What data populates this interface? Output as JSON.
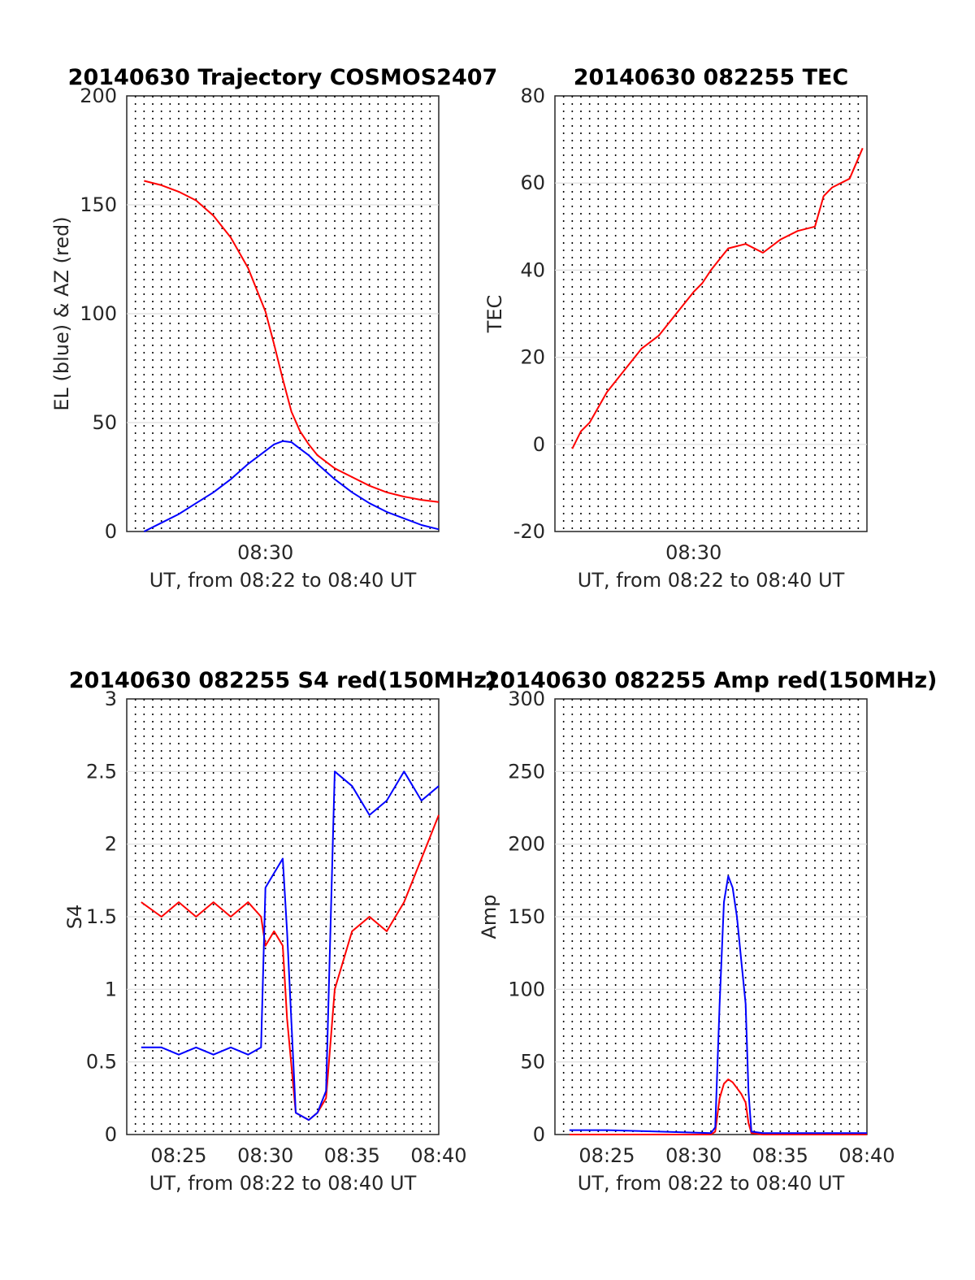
{
  "charts": [
    {
      "id": "trajectory",
      "chart_data": {
        "type": "line",
        "title": "20140630 Trajectory COSMOS2407",
        "xlabel": "UT, from 08:22 to 08:40 UT",
        "ylabel": "EL (blue) & AZ (red)",
        "xlim": [
          "08:22",
          "08:40"
        ],
        "ylim": [
          0,
          200
        ],
        "x_ticks": [
          "08:30"
        ],
        "y_ticks": [
          "0",
          "50",
          "100",
          "150",
          "200"
        ],
        "grid": "horizontal solid, vertical dotted every 30 s",
        "x_sample_times": [
          "08:23:00",
          "08:24:00",
          "08:25:00",
          "08:26:00",
          "08:27:00",
          "08:28:00",
          "08:29:00",
          "08:30:00",
          "08:30:30",
          "08:31:00",
          "08:31:30",
          "08:32:00",
          "08:32:30",
          "08:33:00",
          "08:34:00",
          "08:35:00",
          "08:36:00",
          "08:37:00",
          "08:38:00",
          "08:39:00",
          "08:40:00"
        ],
        "series": [
          {
            "color": "#ff0000",
            "values": [
              161,
              159,
              156,
              152,
              145,
              135,
              121,
              101,
              86,
              70,
              55,
              46,
              40,
              35,
              29,
              25,
              21,
              18,
              16,
              14.5,
              13.5
            ]
          },
          {
            "color": "#0000ff",
            "values": [
              0,
              4,
              8,
              13,
              18,
              24,
              31,
              37,
              40,
              41.5,
              41,
              38,
              35,
              31,
              24,
              18,
              13,
              9,
              6,
              3,
              1
            ]
          }
        ]
      }
    },
    {
      "id": "tec",
      "chart_data": {
        "type": "line",
        "title": "20140630 082255 TEC",
        "xlabel": "UT, from 08:22 to 08:40 UT",
        "ylabel": "TEC",
        "xlim": [
          "08:22",
          "08:40"
        ],
        "ylim": [
          -20,
          80
        ],
        "x_ticks": [
          "08:30"
        ],
        "y_ticks": [
          "-20",
          "0",
          "20",
          "40",
          "60",
          "80"
        ],
        "grid": "horizontal solid, vertical dotted every 30 s",
        "x_sample_times": [
          "08:23:00",
          "08:23:30",
          "08:24:00",
          "08:25:00",
          "08:26:00",
          "08:27:00",
          "08:28:00",
          "08:29:00",
          "08:30:00",
          "08:30:30",
          "08:31:00",
          "08:32:00",
          "08:33:00",
          "08:34:00",
          "08:35:00",
          "08:36:00",
          "08:37:00",
          "08:37:30",
          "08:38:00",
          "08:39:00",
          "08:39:45"
        ],
        "series": [
          {
            "color": "#ff0000",
            "values": [
              -1,
              3,
              5,
              12,
              17,
              22,
              25,
              30,
              35,
              37,
              40,
              45,
              46,
              44,
              47,
              49,
              50,
              57,
              59,
              61,
              68
            ]
          }
        ]
      }
    },
    {
      "id": "s4",
      "chart_data": {
        "type": "line",
        "title": "20140630 082255 S4 red(150MHz)",
        "xlabel": "UT, from 08:22 to 08:40 UT",
        "ylabel": "S4",
        "xlim": [
          "08:22",
          "08:40"
        ],
        "ylim": [
          0,
          3
        ],
        "x_ticks": [
          "08:25",
          "08:30",
          "08:35",
          "08:40"
        ],
        "y_ticks": [
          "0",
          "0.5",
          "1",
          "1.5",
          "2",
          "2.5",
          "3"
        ],
        "grid": "horizontal solid, vertical dotted every 30 s",
        "x_sample_times": [
          "08:22:50",
          "08:24:00",
          "08:25:00",
          "08:26:00",
          "08:27:00",
          "08:28:00",
          "08:29:00",
          "08:29:45",
          "08:30:00",
          "08:30:30",
          "08:31:00",
          "08:31:15",
          "08:31:45",
          "08:32:30",
          "08:33:00",
          "08:33:30",
          "08:34:00",
          "08:35:00",
          "08:36:00",
          "08:37:00",
          "08:38:00",
          "08:39:00",
          "08:40:00"
        ],
        "series": [
          {
            "color": "#ff0000",
            "values": [
              1.6,
              1.5,
              1.6,
              1.5,
              1.6,
              1.5,
              1.6,
              1.5,
              1.3,
              1.4,
              1.3,
              0.8,
              0.15,
              0.1,
              0.15,
              0.25,
              1.0,
              1.4,
              1.5,
              1.4,
              1.6,
              1.9,
              2.2
            ]
          },
          {
            "color": "#0000ff",
            "values": [
              0.6,
              0.6,
              0.55,
              0.6,
              0.55,
              0.6,
              0.55,
              0.6,
              1.7,
              1.8,
              1.9,
              1.4,
              0.15,
              0.1,
              0.15,
              0.3,
              2.5,
              2.4,
              2.2,
              2.3,
              2.5,
              2.3,
              2.4
            ]
          }
        ]
      }
    },
    {
      "id": "amp",
      "chart_data": {
        "type": "line",
        "title": "20140630 082255 Amp red(150MHz)",
        "xlabel": "UT, from 08:22 to 08:40 UT",
        "ylabel": "Amp",
        "xlim": [
          "08:22",
          "08:40"
        ],
        "ylim": [
          0,
          300
        ],
        "x_ticks": [
          "08:25",
          "08:30",
          "08:35",
          "08:40"
        ],
        "y_ticks": [
          "0",
          "50",
          "100",
          "150",
          "200",
          "250",
          "300"
        ],
        "grid": "horizontal solid, vertical dotted every 30 s",
        "x_sample_times": [
          "08:22:50",
          "08:25:00",
          "08:28:00",
          "08:31:00",
          "08:31:15",
          "08:31:30",
          "08:31:45",
          "08:32:00",
          "08:32:15",
          "08:32:30",
          "08:32:45",
          "08:33:00",
          "08:33:10",
          "08:33:20",
          "08:34:00",
          "08:36:00",
          "08:38:00",
          "08:40:00"
        ],
        "series": [
          {
            "color": "#ff0000",
            "values": [
              0,
              0,
              0,
              0,
              2,
              25,
              35,
              38,
              36,
              32,
              28,
              22,
              8,
              1,
              0,
              0,
              0,
              0
            ]
          },
          {
            "color": "#0000ff",
            "values": [
              3,
              3,
              2,
              1,
              5,
              90,
              160,
              178,
              170,
              150,
              120,
              90,
              30,
              2,
              1,
              1,
              1,
              1
            ]
          }
        ]
      }
    }
  ]
}
